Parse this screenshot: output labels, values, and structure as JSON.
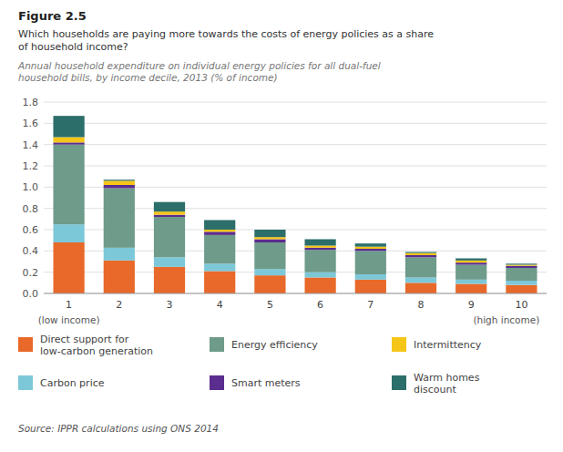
{
  "chart_data": {
    "type": "bar",
    "stacked": true,
    "title": "Figure 2.5",
    "subtitle": "Which households are paying more towards the costs of energy policies as a share\nof household income?",
    "annotations": [
      "Annual household expenditure on individual energy policies for all dual-fuel\nhousehold bills, by income decile, 2013 (% of income)",
      "(low income)",
      "(high income)",
      "Source: IPPR calculations using ONS 2014"
    ],
    "categories": [
      "1",
      "2",
      "3",
      "4",
      "5",
      "6",
      "7",
      "8",
      "9",
      "10"
    ],
    "ylim": [
      0,
      1.8
    ],
    "yticks": [
      {
        "value": 0,
        "label": "0.0"
      },
      0.2,
      0.4,
      0.6,
      0.8,
      {
        "value": 1,
        "label": "1.0"
      },
      1.2,
      1.4,
      1.6,
      1.8
    ],
    "grid": true,
    "series": [
      {
        "name": "Direct support for\nlow-carbon generation",
        "color": "#E8692A",
        "values": [
          0.48,
          0.31,
          0.25,
          0.21,
          0.17,
          0.15,
          0.13,
          0.1,
          0.09,
          0.08
        ]
      },
      {
        "name": "Carbon price",
        "color": "#7DC8D8",
        "values": [
          0.17,
          0.12,
          0.09,
          0.07,
          0.06,
          0.05,
          0.05,
          0.05,
          0.04,
          0.04
        ]
      },
      {
        "name": "Energy efficiency",
        "color": "#6E9B8A",
        "values": [
          0.75,
          0.56,
          0.38,
          0.27,
          0.25,
          0.21,
          0.22,
          0.19,
          0.14,
          0.12
        ]
      },
      {
        "name": "Smart meters",
        "color": "#5B2D8E",
        "values": [
          0.02,
          0.03,
          0.02,
          0.03,
          0.03,
          0.02,
          0.02,
          0.02,
          0.02,
          0.02
        ]
      },
      {
        "name": "Intermittency",
        "color": "#F5C518",
        "values": [
          0.05,
          0.04,
          0.03,
          0.02,
          0.02,
          0.02,
          0.02,
          0.02,
          0.02,
          0.01
        ]
      },
      {
        "name": "Warm homes\ndiscount",
        "color": "#2C6E6A",
        "values": [
          0.2,
          0.01,
          0.09,
          0.09,
          0.07,
          0.06,
          0.03,
          0.01,
          0.02,
          0.01
        ]
      }
    ]
  }
}
